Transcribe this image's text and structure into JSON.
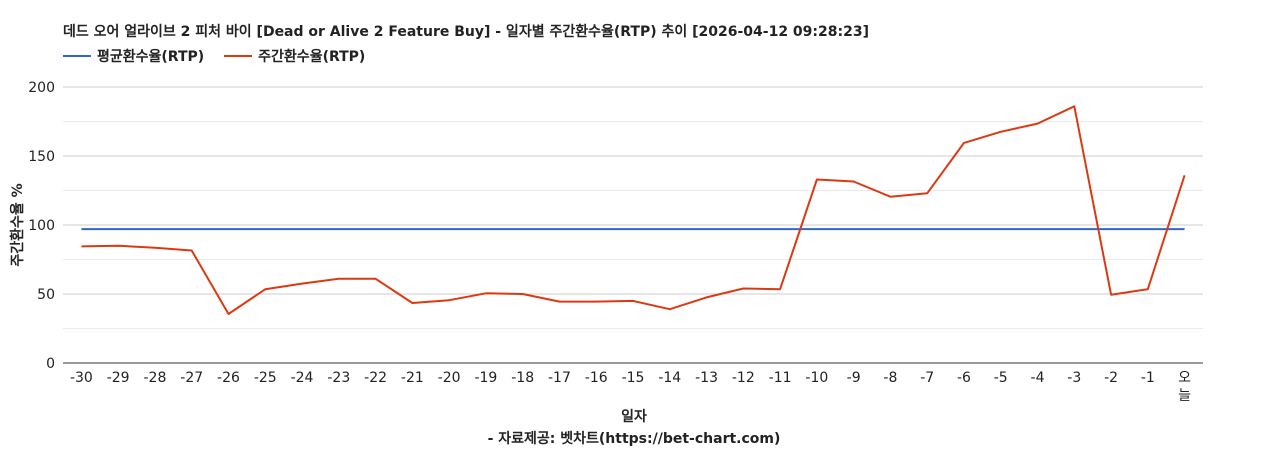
{
  "chart_data": {
    "type": "line",
    "title": "데드 오어 얼라이브 2 피처 바이 [Dead or Alive 2 Feature Buy] - 일자별 주간환수율(RTP) 추이 [2026-04-12 09:28:23]",
    "xlabel": "일자",
    "ylabel": "주간환수율 %",
    "credit": "- 자료제공: 벳차트(https://bet-chart.com)",
    "categories": [
      "-30",
      "-29",
      "-28",
      "-27",
      "-26",
      "-25",
      "-24",
      "-23",
      "-22",
      "-21",
      "-20",
      "-19",
      "-18",
      "-17",
      "-16",
      "-15",
      "-14",
      "-13",
      "-12",
      "-11",
      "-10",
      "-9",
      "-8",
      "-7",
      "-6",
      "-5",
      "-4",
      "-3",
      "-2",
      "-1",
      "오늘"
    ],
    "ylim": [
      0,
      200
    ],
    "yticks": [
      0,
      50,
      100,
      150,
      200
    ],
    "grid": true,
    "legend_position": "top-left",
    "series": [
      {
        "name": "평균환수율(RTP)",
        "color": "#3366cc",
        "values": [
          97,
          97,
          97,
          97,
          97,
          97,
          97,
          97,
          97,
          97,
          97,
          97,
          97,
          97,
          97,
          97,
          97,
          97,
          97,
          97,
          97,
          97,
          97,
          97,
          97,
          97,
          97,
          97,
          97,
          97,
          97
        ]
      },
      {
        "name": "주간환수율(RTP)",
        "color": "#dc3912",
        "values": [
          84.5,
          85,
          83.5,
          81.5,
          35.5,
          53.5,
          57.5,
          61,
          61,
          43.5,
          45.5,
          50.5,
          50,
          44.5,
          44.5,
          45,
          39,
          47.5,
          54,
          53.5,
          133,
          131.5,
          120.5,
          123,
          159.5,
          167.5,
          173.5,
          186,
          49.5,
          53.5,
          136
        ]
      }
    ]
  }
}
